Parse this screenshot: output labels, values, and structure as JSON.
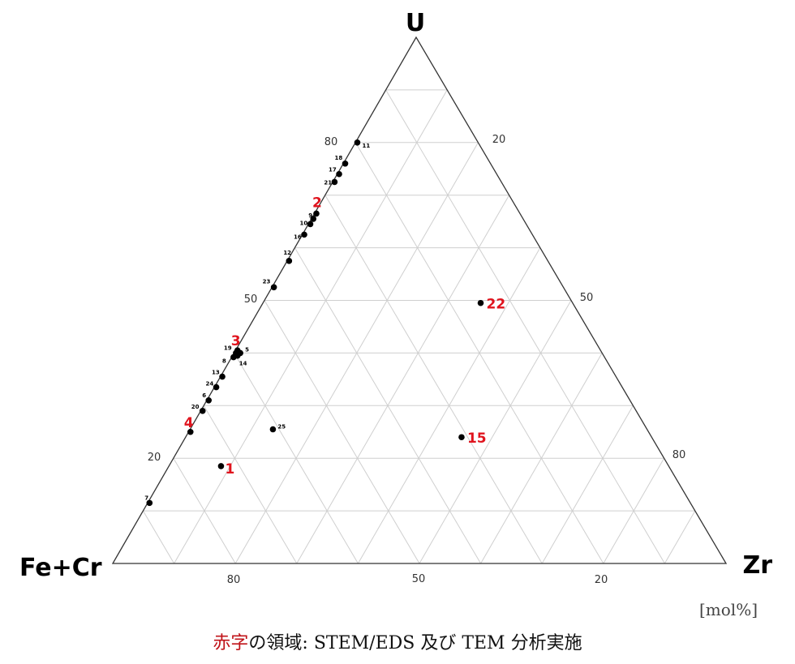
{
  "chart_data": {
    "type": "scatter",
    "subtype": "ternary",
    "vertices": {
      "top": "U",
      "left": "Fe+Cr",
      "right": "Zr"
    },
    "grid_step": 10,
    "grid": true,
    "tick_labels": {
      "U": [
        "80",
        "50",
        "20"
      ],
      "Zr": [
        "20",
        "50",
        "80"
      ],
      "FeCr": [
        "80",
        "50",
        "20"
      ]
    },
    "unit": "[mol%]",
    "caption_red": "赤字",
    "caption_rest": "の領域: STEM/EDS 及び TEM 分析実施",
    "highlight_color": "#e0141e",
    "points": [
      {
        "label": "11",
        "U": 80,
        "Zr": 0.3,
        "red": false
      },
      {
        "label": "18",
        "U": 76,
        "Zr": 0.3,
        "red": false
      },
      {
        "label": "17",
        "U": 74,
        "Zr": 0.3,
        "red": false
      },
      {
        "label": "21",
        "U": 72.5,
        "Zr": 0.3,
        "red": false
      },
      {
        "label": "2",
        "U": 66.5,
        "Zr": 0.3,
        "red": true
      },
      {
        "label": "9",
        "U": 65.5,
        "Zr": 0.3,
        "red": false
      },
      {
        "label": "10",
        "U": 64.5,
        "Zr": 0.3,
        "red": false
      },
      {
        "label": "16",
        "U": 62.5,
        "Zr": 0.3,
        "red": false
      },
      {
        "label": "12",
        "U": 57.5,
        "Zr": 0.3,
        "red": false
      },
      {
        "label": "23",
        "U": 52.5,
        "Zr": 0.3,
        "red": false
      },
      {
        "label": "22",
        "U": 49.5,
        "Zr": 35.5,
        "red": true
      },
      {
        "label": "3",
        "U": 40.5,
        "Zr": 0.3,
        "red": true
      },
      {
        "label": "19",
        "U": 40,
        "Zr": 0.3,
        "red": false
      },
      {
        "label": "5",
        "U": 40,
        "Zr": 1,
        "red": false
      },
      {
        "label": "8",
        "U": 39.2,
        "Zr": 0.3,
        "red": false
      },
      {
        "label": "14",
        "U": 39.5,
        "Zr": 0.8,
        "red": false
      },
      {
        "label": "13",
        "U": 35.5,
        "Zr": 0.3,
        "red": false
      },
      {
        "label": "24",
        "U": 33.5,
        "Zr": 0.3,
        "red": false
      },
      {
        "label": "6",
        "U": 31,
        "Zr": 0.3,
        "red": false
      },
      {
        "label": "20",
        "U": 29,
        "Zr": 0.3,
        "red": false
      },
      {
        "label": "4",
        "U": 25,
        "Zr": 0.3,
        "red": true
      },
      {
        "label": "25",
        "U": 25.5,
        "Zr": 13.5,
        "red": false
      },
      {
        "label": "15",
        "U": 24,
        "Zr": 45,
        "red": true
      },
      {
        "label": "1",
        "U": 18.5,
        "Zr": 8.5,
        "red": true
      },
      {
        "label": "7",
        "U": 11.5,
        "Zr": 0.3,
        "red": false
      }
    ]
  }
}
